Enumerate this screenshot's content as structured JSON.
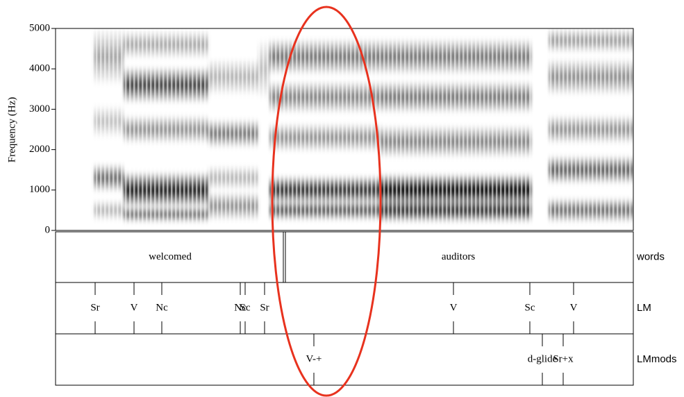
{
  "chart_data": {
    "type": "spectrogram",
    "ylabel": "Frequency (Hz)",
    "ylim": [
      0,
      5000
    ],
    "yticks": [
      0,
      1000,
      2000,
      3000,
      4000,
      5000
    ]
  },
  "tiers": [
    {
      "name": "words",
      "labels": [
        "welcomed",
        "auditors"
      ]
    },
    {
      "name": "LM",
      "labels": [
        "Sr",
        "V",
        "Nc",
        "Nc",
        "Sc",
        "Sr",
        "V",
        "Sc",
        "V"
      ]
    },
    {
      "name": "LMmods",
      "labels": [
        "V-+",
        "d-glide",
        "Sr+x"
      ]
    }
  ]
}
